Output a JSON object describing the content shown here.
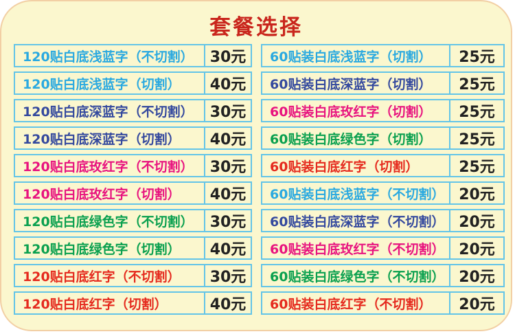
{
  "page": {
    "title": "套餐选择",
    "background_color": "#FBF7CE",
    "card_border_color": "#F2CFA4",
    "table_border_color": "#62C4E8",
    "title_color": "#C9251C"
  },
  "colors": {
    "light_blue": "#2AA9E0",
    "dark_blue": "#34499E",
    "magenta": "#E8137F",
    "green": "#0AA04F",
    "red": "#E52A1E",
    "price": "#222222"
  },
  "left_table": {
    "rows": [
      {
        "label": "120贴白底浅蓝字（不切割）",
        "price": "30元",
        "color": "light_blue"
      },
      {
        "label": "120贴白底浅蓝字（切割）",
        "price": "40元",
        "color": "light_blue"
      },
      {
        "label": "120贴白底深蓝字（不切割）",
        "price": "30元",
        "color": "dark_blue"
      },
      {
        "label": "120贴白底深蓝字（切割）",
        "price": "40元",
        "color": "dark_blue"
      },
      {
        "label": "120贴白底玫红字（不切割）",
        "price": "30元",
        "color": "magenta"
      },
      {
        "label": "120贴白底玫红字（切割）",
        "price": "40元",
        "color": "magenta"
      },
      {
        "label": "120贴白底绿色字（不切割）",
        "price": "30元",
        "color": "green"
      },
      {
        "label": "120贴白底绿色字（切割）",
        "price": "40元",
        "color": "green"
      },
      {
        "label": "120贴白底红字（不切割）",
        "price": "30元",
        "color": "red"
      },
      {
        "label": "120贴白底红字（切割）",
        "price": "40元",
        "color": "red"
      }
    ]
  },
  "right_table": {
    "rows": [
      {
        "label": "60贴装白底浅蓝字（切割）",
        "price": "25元",
        "color": "light_blue"
      },
      {
        "label": "60贴装白底深蓝字（切割）",
        "price": "25元",
        "color": "dark_blue"
      },
      {
        "label": "60贴装白底玫红字（切割）",
        "price": "25元",
        "color": "magenta"
      },
      {
        "label": "60贴装白底绿色字（切割）",
        "price": "25元",
        "color": "green"
      },
      {
        "label": "60贴装白底红字（切割）",
        "price": "25元",
        "color": "red"
      },
      {
        "label": "60贴装白底浅蓝字（不切割）",
        "price": "20元",
        "color": "light_blue"
      },
      {
        "label": "60贴装白底深蓝字（不切割）",
        "price": "20元",
        "color": "dark_blue"
      },
      {
        "label": "60贴装白底玫红字（不切割）",
        "price": "20元",
        "color": "magenta"
      },
      {
        "label": "60贴装白底绿色字（不切割）",
        "price": "20元",
        "color": "green"
      },
      {
        "label": "60贴装白底红字（不切割）",
        "price": "20元",
        "color": "red"
      }
    ]
  }
}
